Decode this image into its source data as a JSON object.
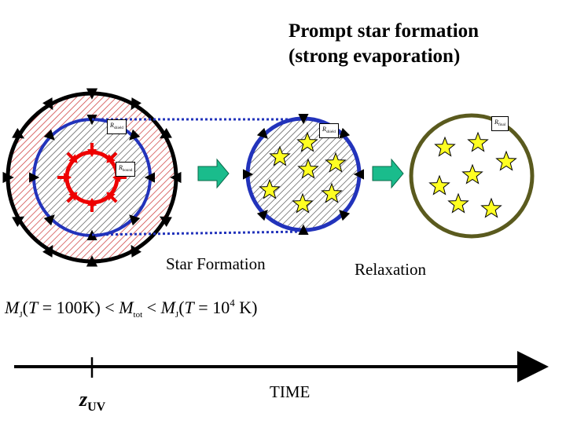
{
  "title": {
    "line1": "Prompt star formation",
    "line2": "(strong evaporation)"
  },
  "stages": {
    "star_formation": "Star Formation",
    "relaxation": "Relaxation"
  },
  "radius_labels": {
    "shield_1": {
      "symbol": "R",
      "subscript": "shield"
    },
    "bound": {
      "symbol": "R",
      "subscript": "bound"
    },
    "shield_2": {
      "symbol": "R",
      "subscript": "shield"
    },
    "final": {
      "symbol": "R",
      "subscript": "final"
    }
  },
  "condition": {
    "mj_left": "M",
    "j_sub_left": "J",
    "paren_left": "(",
    "t_left": "T",
    "eq_left": " = 100K) < ",
    "mtot": "M",
    "tot_sub": "tot",
    "lt2": " < ",
    "mj_right": "M",
    "j_sub_right": "J",
    "paren_right": "(",
    "t_right": "T",
    "eq_right": " = 10",
    "exp": "4",
    "unit": " K)"
  },
  "timeline": {
    "z_symbol": "z",
    "z_subscript": "UV",
    "time_label": "TIME"
  },
  "colors": {
    "outer_ring": "#000000",
    "shield_ring": "#2233bb",
    "bound_ring": "#ee0000",
    "final_ring": "#5a5a1e",
    "arrow_fill": "#1abc8c",
    "star_fill": "#ffff22",
    "hatch_red": "#cc3333",
    "hatch_dark": "#333333"
  },
  "icons": {
    "stage_arrow": "right-arrow-icon",
    "star": "star-icon",
    "inward_arrow": "inward-arrow-icon"
  }
}
